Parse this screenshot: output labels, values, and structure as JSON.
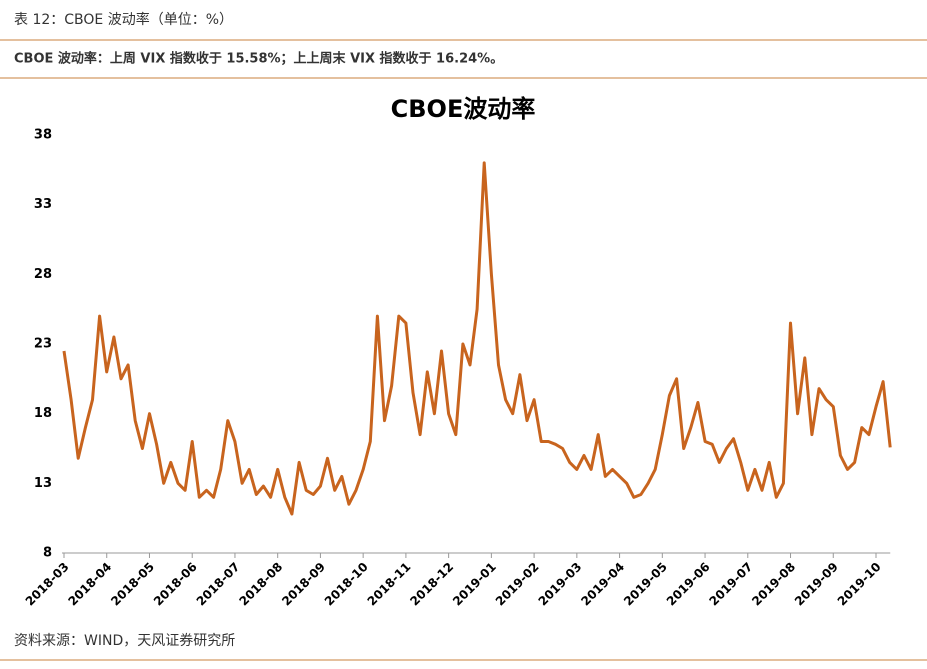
{
  "header": "表 12：CBOE 波动率（单位：%）",
  "subtitle": "CBOE 波动率：上周 VIX 指数收于 15.58%；上上周末 VIX 指数收于 16.24%。",
  "source": "资料来源：WIND，天风证券研究所",
  "chart_data": {
    "type": "line",
    "title": "CBOE波动率",
    "color": "#c8641e",
    "categories": [
      "2018-03",
      null,
      null,
      null,
      null,
      null,
      "2018-04",
      null,
      null,
      null,
      null,
      null,
      "2018-05",
      null,
      null,
      null,
      null,
      null,
      "2018-06",
      null,
      null,
      null,
      null,
      null,
      "2018-07",
      null,
      null,
      null,
      null,
      null,
      "2018-08",
      null,
      null,
      null,
      null,
      null,
      "2018-09",
      null,
      null,
      null,
      null,
      null,
      "2018-10",
      null,
      null,
      null,
      null,
      null,
      "2018-11",
      null,
      null,
      null,
      null,
      null,
      "2018-12",
      null,
      null,
      null,
      null,
      null,
      "2019-01",
      null,
      null,
      null,
      null,
      null,
      "2019-02",
      null,
      null,
      null,
      null,
      null,
      "2019-03",
      null,
      null,
      null,
      null,
      null,
      "2019-04",
      null,
      null,
      null,
      null,
      null,
      "2019-05",
      null,
      null,
      null,
      null,
      null,
      "2019-06",
      null,
      null,
      null,
      null,
      null,
      "2019-07",
      null,
      null,
      null,
      null,
      null,
      "2019-08",
      null,
      null,
      null,
      null,
      null,
      "2019-09",
      null,
      null,
      null,
      null,
      null,
      "2019-10",
      null,
      null
    ],
    "values": [
      22.5,
      19,
      14.8,
      17,
      19,
      25,
      21,
      23.5,
      20.5,
      21.5,
      17.5,
      15.5,
      18,
      15.8,
      13,
      14.5,
      13,
      12.5,
      16,
      12,
      12.5,
      12,
      14,
      17.5,
      16,
      13,
      14,
      12.2,
      12.8,
      12,
      14,
      12,
      10.8,
      14.5,
      12.5,
      12.2,
      12.8,
      14.8,
      12.5,
      13.5,
      11.5,
      12.5,
      14,
      16,
      25,
      17.5,
      20,
      25,
      24.5,
      19.5,
      16.5,
      21,
      18,
      22.5,
      18,
      16.5,
      23,
      21.5,
      25.5,
      36,
      28,
      21.5,
      19,
      18,
      20.8,
      17.5,
      19,
      16,
      16,
      15.8,
      15.5,
      14.5,
      14,
      15,
      14,
      16.5,
      13.5,
      14,
      13.5,
      13,
      12,
      12.2,
      13,
      14,
      16.5,
      19.3,
      20.5,
      15.5,
      17,
      18.8,
      16,
      15.8,
      14.5,
      15.5,
      16.2,
      14.5,
      12.5,
      14,
      12.5,
      14.5,
      12,
      13,
      24.5,
      18,
      22,
      16.5,
      19.8,
      19,
      18.5,
      15,
      14,
      14.5,
      17,
      16.5,
      18.5,
      20.3,
      15.58
    ],
    "ylim": [
      8,
      38
    ],
    "yticks": [
      8,
      13,
      18,
      23,
      28,
      33,
      38
    ],
    "grid": false
  }
}
